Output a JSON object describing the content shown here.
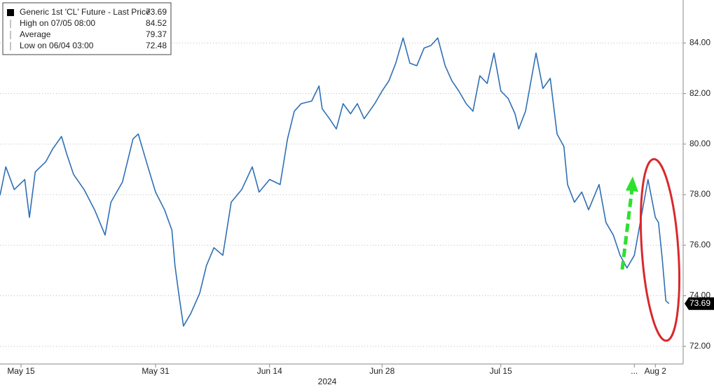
{
  "chart_data": {
    "type": "line",
    "legend": {
      "items": [
        {
          "label": "Generic 1st 'CL' Future - Last Price",
          "value": "73.69"
        },
        {
          "label": "High on 07/05 08:00",
          "value": "84.52"
        },
        {
          "label": "Average",
          "value": "79.37"
        },
        {
          "label": "Low on 06/04 03:00",
          "value": "72.48"
        }
      ],
      "position": "upper left"
    },
    "xlabel": "2024",
    "x": [
      0,
      1.1,
      2.7,
      4.7,
      5.6,
      6.7,
      8.7,
      10,
      11.7,
      12.7,
      14,
      16,
      18,
      20,
      21.1,
      23.3,
      25.3,
      26.3,
      28,
      29.6,
      31.3,
      32.7,
      33.3,
      34,
      34.9,
      36.3,
      38,
      39.3,
      40.7,
      42.4,
      44,
      46,
      48,
      49.3,
      51.3,
      53.3,
      54.7,
      56,
      57.3,
      59.3,
      60.7,
      61.3,
      62.7,
      64,
      65.3,
      66.7,
      68,
      69.3,
      71.3,
      72.7,
      74,
      75.3,
      76.7,
      78,
      79.3,
      80.7,
      82,
      83.3,
      84.7,
      86,
      87.3,
      88.7,
      90,
      91.3,
      92.7,
      94,
      95.3,
      96.7,
      98,
      98.7,
      100,
      102,
      103.3,
      104.7,
      106,
      107.3,
      108,
      109.3,
      110.7,
      112,
      114,
      115.3,
      116.7,
      118,
      119.3,
      120.7,
      122,
      123.3,
      124.7,
      125.3,
      126,
      126.7,
      127.3
    ],
    "series": [
      {
        "name": "Generic 1st 'CL' Future - Last Price",
        "color": "#2f6fb5",
        "values": [
          77.97,
          79.1,
          78.2,
          78.6,
          77.1,
          78.9,
          79.3,
          79.8,
          80.3,
          79.6,
          78.8,
          78.2,
          77.4,
          76.4,
          77.7,
          78.5,
          80.2,
          80.4,
          79.2,
          78.1,
          77.4,
          76.6,
          75.2,
          74.1,
          72.8,
          73.3,
          74.1,
          75.2,
          75.9,
          75.6,
          77.7,
          78.2,
          79.1,
          78.1,
          78.6,
          78.4,
          80.2,
          81.3,
          81.6,
          81.7,
          82.3,
          81.4,
          81.0,
          80.6,
          81.6,
          81.2,
          81.6,
          81.0,
          81.6,
          82.1,
          82.5,
          83.2,
          84.2,
          83.2,
          83.1,
          83.8,
          83.9,
          84.2,
          83.1,
          82.5,
          82.1,
          81.6,
          81.3,
          82.7,
          82.4,
          83.6,
          82.1,
          81.8,
          81.2,
          80.6,
          81.3,
          83.6,
          82.2,
          82.6,
          80.4,
          79.9,
          78.4,
          77.7,
          78.1,
          77.4,
          78.4,
          76.9,
          76.4,
          75.6,
          75.1,
          75.6,
          77.1,
          78.6,
          77.1,
          76.9,
          75.5,
          73.8,
          73.69
        ]
      }
    ],
    "xlim": [
      0,
      130
    ],
    "xticks": [
      {
        "value": 4,
        "label": "May 15"
      },
      {
        "value": 29.6,
        "label": "May 31"
      },
      {
        "value": 51.3,
        "label": "Jun 14"
      },
      {
        "value": 72.7,
        "label": "Jun 28"
      },
      {
        "value": 95.3,
        "label": "Jul 15"
      },
      {
        "value": 120.7,
        "label": "..."
      },
      {
        "value": 124.7,
        "label": "Aug 2"
      }
    ],
    "ylim": [
      71.3,
      85.7
    ],
    "yticks": [
      {
        "value": 72,
        "label": "72.00"
      },
      {
        "value": 74,
        "label": "74.00"
      },
      {
        "value": 76,
        "label": "76.00"
      },
      {
        "value": 78,
        "label": "78.00"
      },
      {
        "value": 80,
        "label": "80.00"
      },
      {
        "value": 82,
        "label": "82.00"
      },
      {
        "value": 84,
        "label": "84.00"
      }
    ],
    "grid": true
  }
}
